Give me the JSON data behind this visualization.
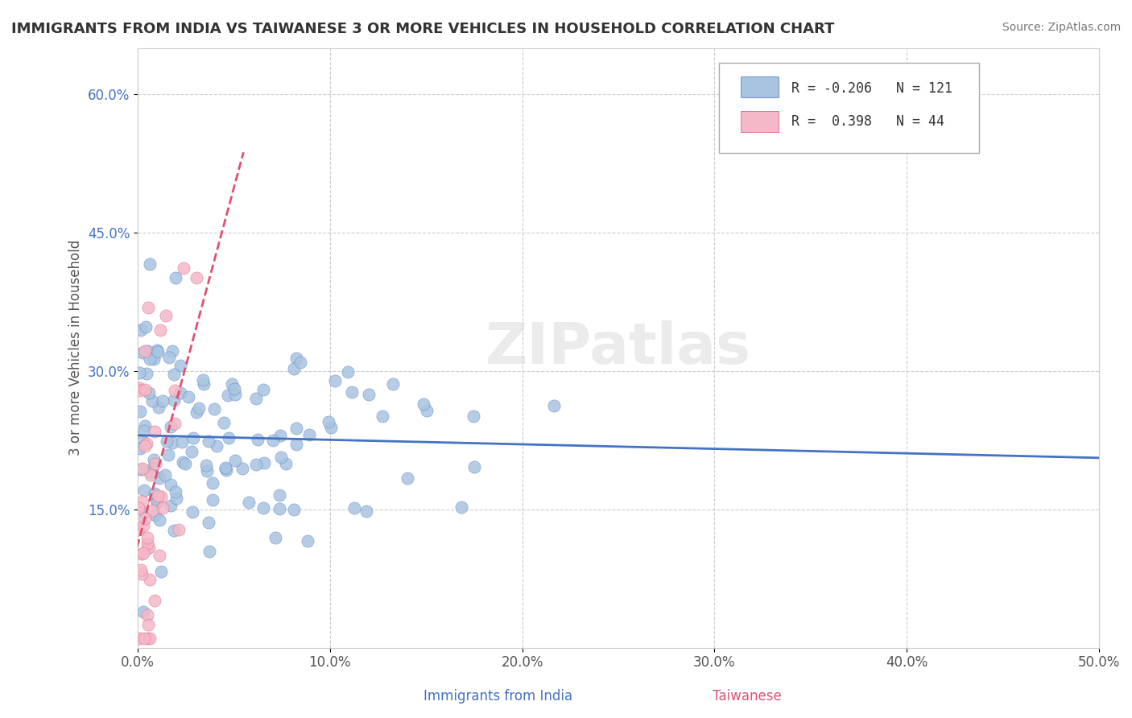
{
  "title": "IMMIGRANTS FROM INDIA VS TAIWANESE 3 OR MORE VEHICLES IN HOUSEHOLD CORRELATION CHART",
  "source_text": "Source: ZipAtlas.com",
  "xlabel": "Immigrants from India",
  "ylabel": "3 or more Vehicles in Household",
  "xlim": [
    0.0,
    0.5
  ],
  "ylim": [
    0.0,
    0.65
  ],
  "xtick_labels": [
    "0.0%",
    "10.0%",
    "20.0%",
    "30.0%",
    "40.0%",
    "50.0%"
  ],
  "xtick_vals": [
    0.0,
    0.1,
    0.2,
    0.3,
    0.4,
    0.5
  ],
  "ytick_labels": [
    "15.0%",
    "30.0%",
    "45.0%",
    "60.0%"
  ],
  "ytick_vals": [
    0.15,
    0.3,
    0.45,
    0.6
  ],
  "india_color": "#a8c4e0",
  "india_color_dark": "#4472c4",
  "taiwanese_color": "#f4b8c8",
  "taiwanese_color_dark": "#e05070",
  "india_R": -0.206,
  "india_N": 121,
  "taiwanese_R": 0.398,
  "taiwanese_N": 44,
  "india_seed": 42,
  "taiwan_seed": 7,
  "watermark": "ZIPatlas",
  "legend_R_india": "R = -0.206",
  "legend_N_india": "N = 121",
  "legend_R_taiwan": "R =  0.398",
  "legend_N_taiwan": "N = 44",
  "background_color": "#ffffff",
  "grid_color": "#cccccc"
}
